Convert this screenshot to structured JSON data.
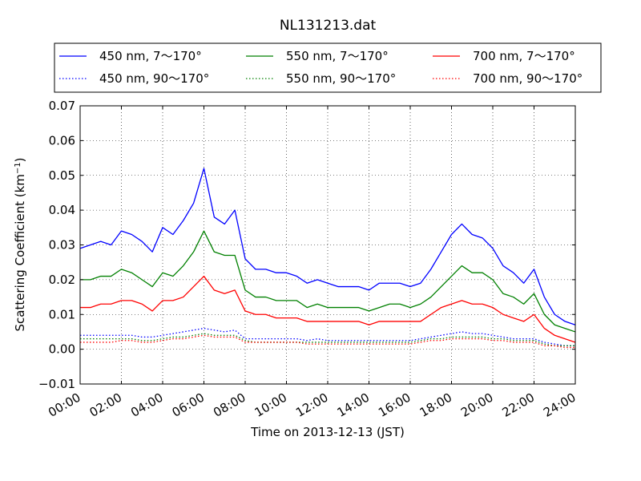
{
  "chart_data": {
    "type": "line",
    "title": "NL131213.dat",
    "xlabel": "Time on 2013-12-13 (JST)",
    "ylabel_prefix": "Scattering Coefficient (km",
    "ylabel_sup": "−1",
    "ylabel_suffix": ")",
    "x_unit": "hour",
    "xlim": [
      0,
      24
    ],
    "ylim": [
      -0.01,
      0.07
    ],
    "x_ticks": [
      0,
      2,
      4,
      6,
      8,
      10,
      12,
      14,
      16,
      18,
      20,
      22,
      24
    ],
    "x_tick_labels": [
      "00:00",
      "02:00",
      "04:00",
      "06:00",
      "08:00",
      "10:00",
      "12:00",
      "14:00",
      "16:00",
      "18:00",
      "20:00",
      "22:00",
      "24:00"
    ],
    "y_ticks": [
      -0.01,
      0.0,
      0.01,
      0.02,
      0.03,
      0.04,
      0.05,
      0.06,
      0.07
    ],
    "y_tick_labels": [
      "−0.01",
      "0.00",
      "0.01",
      "0.02",
      "0.03",
      "0.04",
      "0.05",
      "0.06",
      "0.07"
    ],
    "grid": true,
    "legend_position": "top, above plot, 3 columns",
    "x": [
      0,
      0.5,
      1,
      1.5,
      2,
      2.5,
      3,
      3.5,
      4,
      4.5,
      5,
      5.5,
      6,
      6.5,
      7,
      7.5,
      8,
      8.5,
      9,
      9.5,
      10,
      10.5,
      11,
      11.5,
      12,
      12.5,
      13,
      13.5,
      14,
      14.5,
      15,
      15.5,
      16,
      16.5,
      17,
      17.5,
      18,
      18.5,
      19,
      19.5,
      20,
      20.5,
      21,
      21.5,
      22,
      22.5,
      23,
      23.5,
      24
    ],
    "series": [
      {
        "name": "450 nm, 7～170°",
        "color": "#0000ff",
        "style": "solid",
        "values": [
          0.029,
          0.03,
          0.031,
          0.03,
          0.034,
          0.033,
          0.031,
          0.028,
          0.035,
          0.033,
          0.037,
          0.042,
          0.052,
          0.038,
          0.036,
          0.04,
          0.026,
          0.023,
          0.023,
          0.022,
          0.022,
          0.021,
          0.019,
          0.02,
          0.019,
          0.018,
          0.018,
          0.018,
          0.017,
          0.019,
          0.019,
          0.019,
          0.018,
          0.019,
          0.023,
          0.028,
          0.033,
          0.036,
          0.033,
          0.032,
          0.029,
          0.024,
          0.022,
          0.019,
          0.023,
          0.015,
          0.01,
          0.008,
          0.007
        ]
      },
      {
        "name": "450 nm, 90～170°",
        "color": "#0000ff",
        "style": "dotted",
        "values": [
          0.004,
          0.004,
          0.004,
          0.004,
          0.004,
          0.004,
          0.0035,
          0.0035,
          0.004,
          0.0045,
          0.005,
          0.0055,
          0.006,
          0.0055,
          0.005,
          0.0055,
          0.003,
          0.003,
          0.003,
          0.003,
          0.003,
          0.003,
          0.0025,
          0.003,
          0.0025,
          0.0025,
          0.0025,
          0.0025,
          0.0025,
          0.0025,
          0.0025,
          0.0025,
          0.0025,
          0.003,
          0.0035,
          0.004,
          0.0045,
          0.005,
          0.0045,
          0.0045,
          0.004,
          0.0035,
          0.003,
          0.003,
          0.003,
          0.002,
          0.0015,
          0.001,
          0.001
        ]
      },
      {
        "name": "550 nm, 7～170°",
        "color": "#008000",
        "style": "solid",
        "values": [
          0.02,
          0.02,
          0.021,
          0.021,
          0.023,
          0.022,
          0.02,
          0.018,
          0.022,
          0.021,
          0.024,
          0.028,
          0.034,
          0.028,
          0.027,
          0.027,
          0.017,
          0.015,
          0.015,
          0.014,
          0.014,
          0.014,
          0.012,
          0.013,
          0.012,
          0.012,
          0.012,
          0.012,
          0.011,
          0.012,
          0.013,
          0.013,
          0.012,
          0.013,
          0.015,
          0.018,
          0.021,
          0.024,
          0.022,
          0.022,
          0.02,
          0.016,
          0.015,
          0.013,
          0.016,
          0.01,
          0.007,
          0.006,
          0.005
        ]
      },
      {
        "name": "550 nm, 90～170°",
        "color": "#008000",
        "style": "dotted",
        "values": [
          0.003,
          0.003,
          0.003,
          0.003,
          0.003,
          0.003,
          0.0025,
          0.0025,
          0.003,
          0.0035,
          0.0035,
          0.004,
          0.0045,
          0.004,
          0.004,
          0.004,
          0.0025,
          0.002,
          0.002,
          0.002,
          0.002,
          0.002,
          0.002,
          0.002,
          0.002,
          0.002,
          0.002,
          0.002,
          0.002,
          0.002,
          0.002,
          0.002,
          0.002,
          0.0025,
          0.003,
          0.003,
          0.0035,
          0.0035,
          0.0035,
          0.0035,
          0.003,
          0.003,
          0.0025,
          0.0025,
          0.0025,
          0.0015,
          0.001,
          0.001,
          0.001
        ]
      },
      {
        "name": "700 nm, 7～170°",
        "color": "#ff0000",
        "style": "solid",
        "values": [
          0.012,
          0.012,
          0.013,
          0.013,
          0.014,
          0.014,
          0.013,
          0.011,
          0.014,
          0.014,
          0.015,
          0.018,
          0.021,
          0.017,
          0.016,
          0.017,
          0.011,
          0.01,
          0.01,
          0.009,
          0.009,
          0.009,
          0.008,
          0.008,
          0.008,
          0.008,
          0.008,
          0.008,
          0.007,
          0.008,
          0.008,
          0.008,
          0.008,
          0.008,
          0.01,
          0.012,
          0.013,
          0.014,
          0.013,
          0.013,
          0.012,
          0.01,
          0.009,
          0.008,
          0.01,
          0.006,
          0.004,
          0.003,
          0.002
        ]
      },
      {
        "name": "700 nm, 90～170°",
        "color": "#ff0000",
        "style": "dotted",
        "values": [
          0.002,
          0.002,
          0.002,
          0.002,
          0.0025,
          0.0025,
          0.002,
          0.002,
          0.0025,
          0.003,
          0.003,
          0.0035,
          0.004,
          0.0035,
          0.0035,
          0.0035,
          0.002,
          0.002,
          0.002,
          0.002,
          0.002,
          0.002,
          0.0015,
          0.0015,
          0.0015,
          0.0015,
          0.0015,
          0.0015,
          0.0015,
          0.0015,
          0.0015,
          0.0015,
          0.0015,
          0.002,
          0.0025,
          0.0025,
          0.003,
          0.003,
          0.003,
          0.003,
          0.0025,
          0.0025,
          0.002,
          0.002,
          0.002,
          0.001,
          0.001,
          0.0005,
          0.0005
        ]
      }
    ]
  }
}
